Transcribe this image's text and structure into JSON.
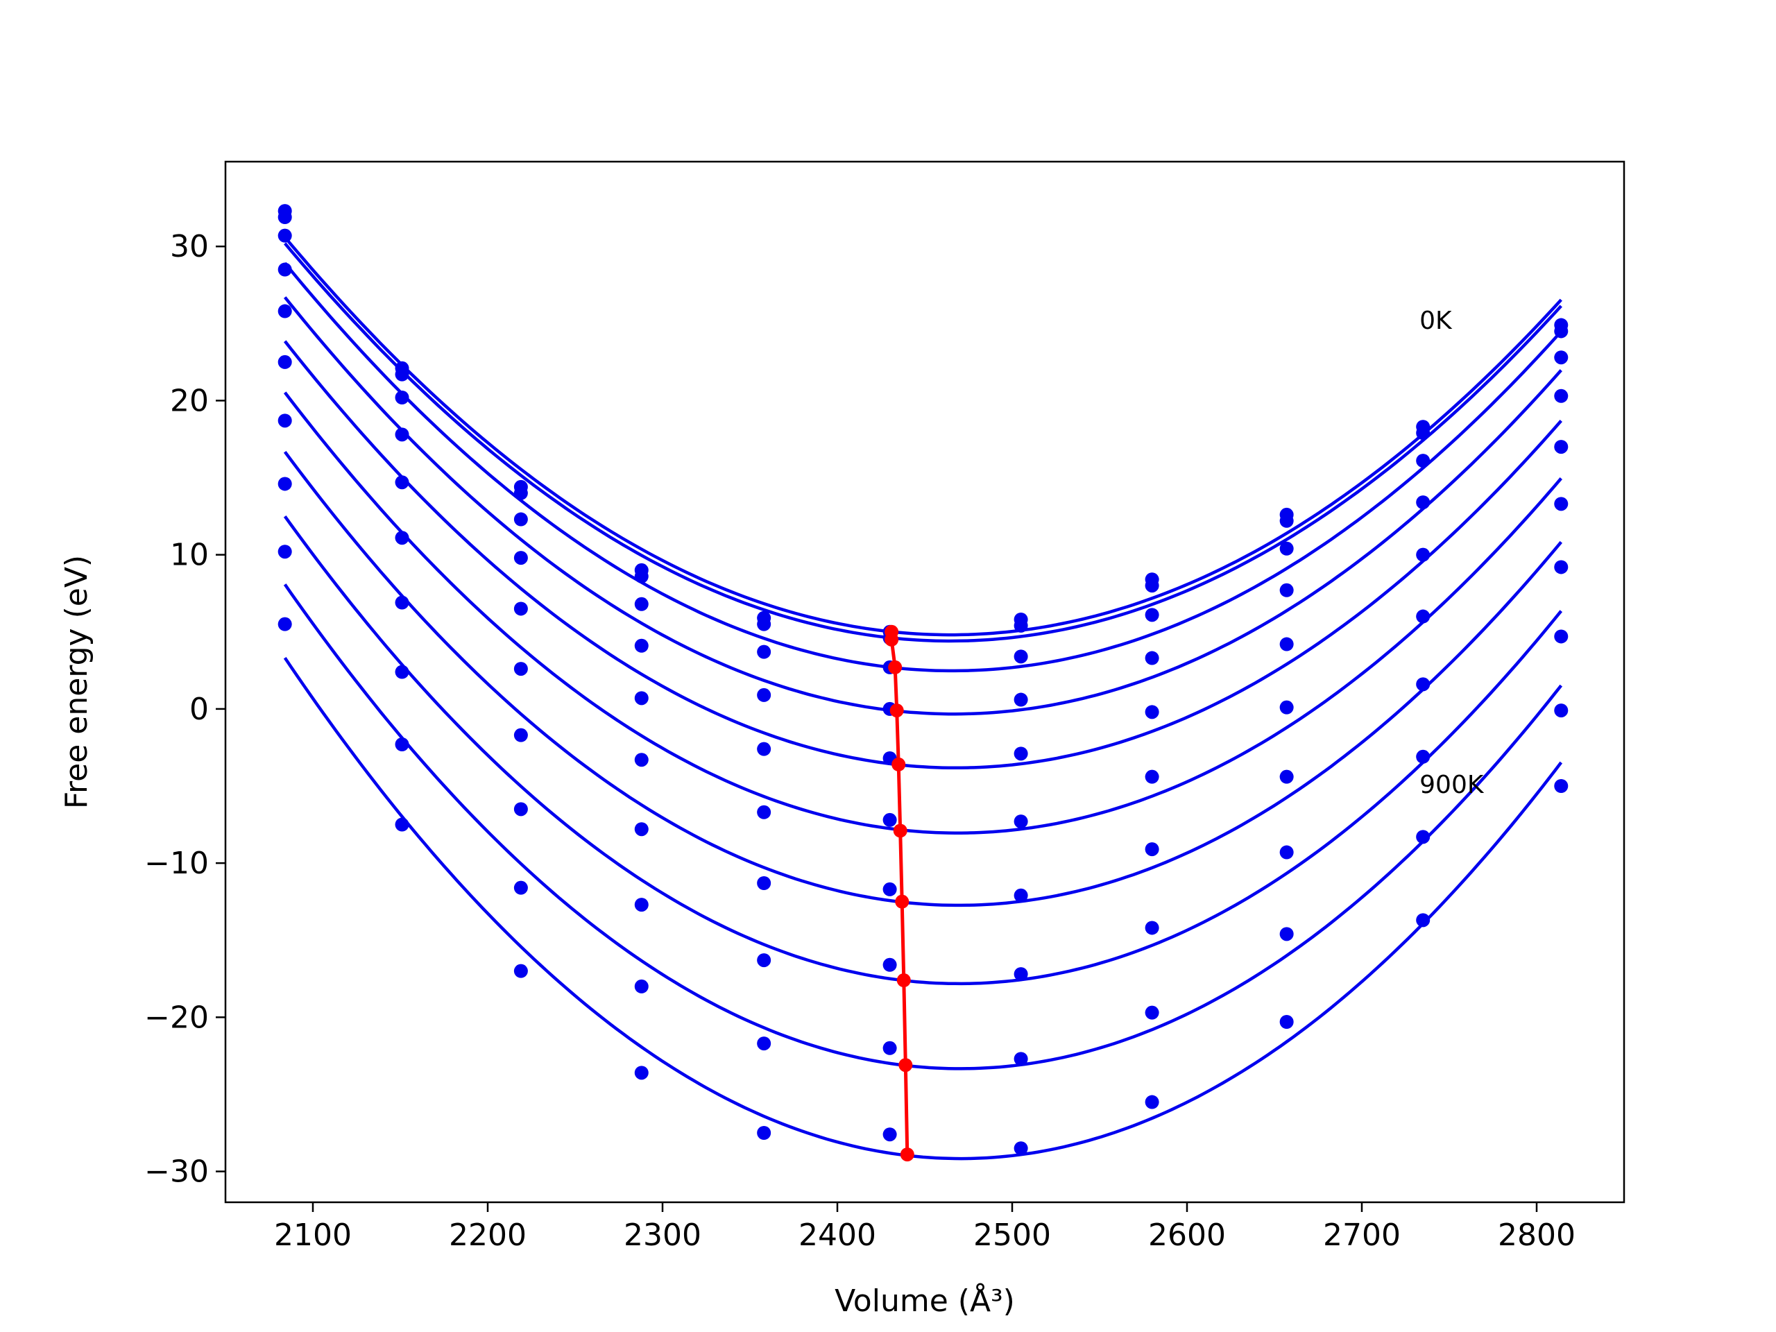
{
  "chart_data": {
    "type": "line",
    "xlabel": "Volume",
    "xlabel_unit": "(Å³)",
    "ylabel": "Free energy (eV)",
    "xlim": [
      2050,
      2850
    ],
    "ylim": [
      -32,
      35.5
    ],
    "x_ticks": [
      2100,
      2200,
      2300,
      2400,
      2500,
      2600,
      2700,
      2800
    ],
    "y_ticks": [
      30,
      20,
      10,
      0,
      -10,
      -20,
      -30
    ],
    "x_tick_labels": [
      "2100",
      "2200",
      "2300",
      "2400",
      "2500",
      "2600",
      "2700",
      "2800"
    ],
    "y_tick_labels": [
      "30",
      "20",
      "10",
      "0",
      "−10",
      "−20",
      "−30"
    ],
    "grid": false,
    "colors": {
      "curves": "#0000ee",
      "minimum": "#ff0000",
      "axes": "#000000"
    },
    "annotations": [
      {
        "text": "0K",
        "x": 2733,
        "y": 25.2
      },
      {
        "text": "900K",
        "x": 2733,
        "y": -4.9
      }
    ],
    "x": [
      2084,
      2151,
      2219,
      2288,
      2358,
      2430,
      2505,
      2580,
      2657,
      2735,
      2814
    ],
    "series": [
      {
        "values": [
          32.3,
          22.1,
          14.4,
          9.0,
          5.9,
          5.0,
          5.8,
          8.4,
          12.6,
          18.3,
          24.9
        ]
      },
      {
        "values": [
          31.9,
          21.7,
          14.0,
          8.6,
          5.5,
          4.6,
          5.4,
          8.0,
          12.2,
          17.9,
          24.5
        ]
      },
      {
        "values": [
          30.7,
          20.2,
          12.3,
          6.8,
          3.7,
          2.7,
          3.4,
          6.1,
          10.4,
          16.1,
          22.8
        ]
      },
      {
        "values": [
          28.5,
          17.8,
          9.8,
          4.1,
          0.9,
          0.0,
          0.6,
          3.3,
          7.7,
          13.4,
          20.3
        ]
      },
      {
        "values": [
          25.8,
          14.7,
          6.5,
          0.7,
          -2.6,
          -3.2,
          -2.9,
          -0.2,
          4.2,
          10.0,
          17.0
        ]
      },
      {
        "values": [
          22.5,
          11.1,
          2.6,
          -3.3,
          -6.7,
          -7.2,
          -7.3,
          -4.4,
          0.1,
          6.0,
          13.3
        ]
      },
      {
        "values": [
          18.7,
          6.9,
          -1.7,
          -7.8,
          -11.3,
          -11.7,
          -12.1,
          -9.1,
          -4.4,
          1.6,
          9.2
        ]
      },
      {
        "values": [
          14.6,
          2.4,
          -6.5,
          -12.7,
          -16.3,
          -16.6,
          -17.2,
          -14.2,
          -9.3,
          -3.1,
          4.7
        ]
      },
      {
        "values": [
          10.2,
          -2.3,
          -11.6,
          -18.0,
          -21.7,
          -22.0,
          -22.7,
          -19.7,
          -14.6,
          -8.3,
          -0.1
        ]
      },
      {
        "values": [
          5.5,
          -7.5,
          -17.0,
          -23.6,
          -27.5,
          -27.6,
          -28.5,
          -25.5,
          -20.3,
          -13.7,
          -5.0
        ]
      }
    ],
    "minimum_curve": {
      "x": [
        2431,
        2431,
        2433,
        2434,
        2435,
        2436,
        2437,
        2438,
        2439,
        2440
      ],
      "y": [
        5.0,
        4.5,
        2.7,
        -0.1,
        -3.6,
        -7.9,
        -12.5,
        -17.6,
        -23.1,
        -28.9
      ]
    }
  }
}
